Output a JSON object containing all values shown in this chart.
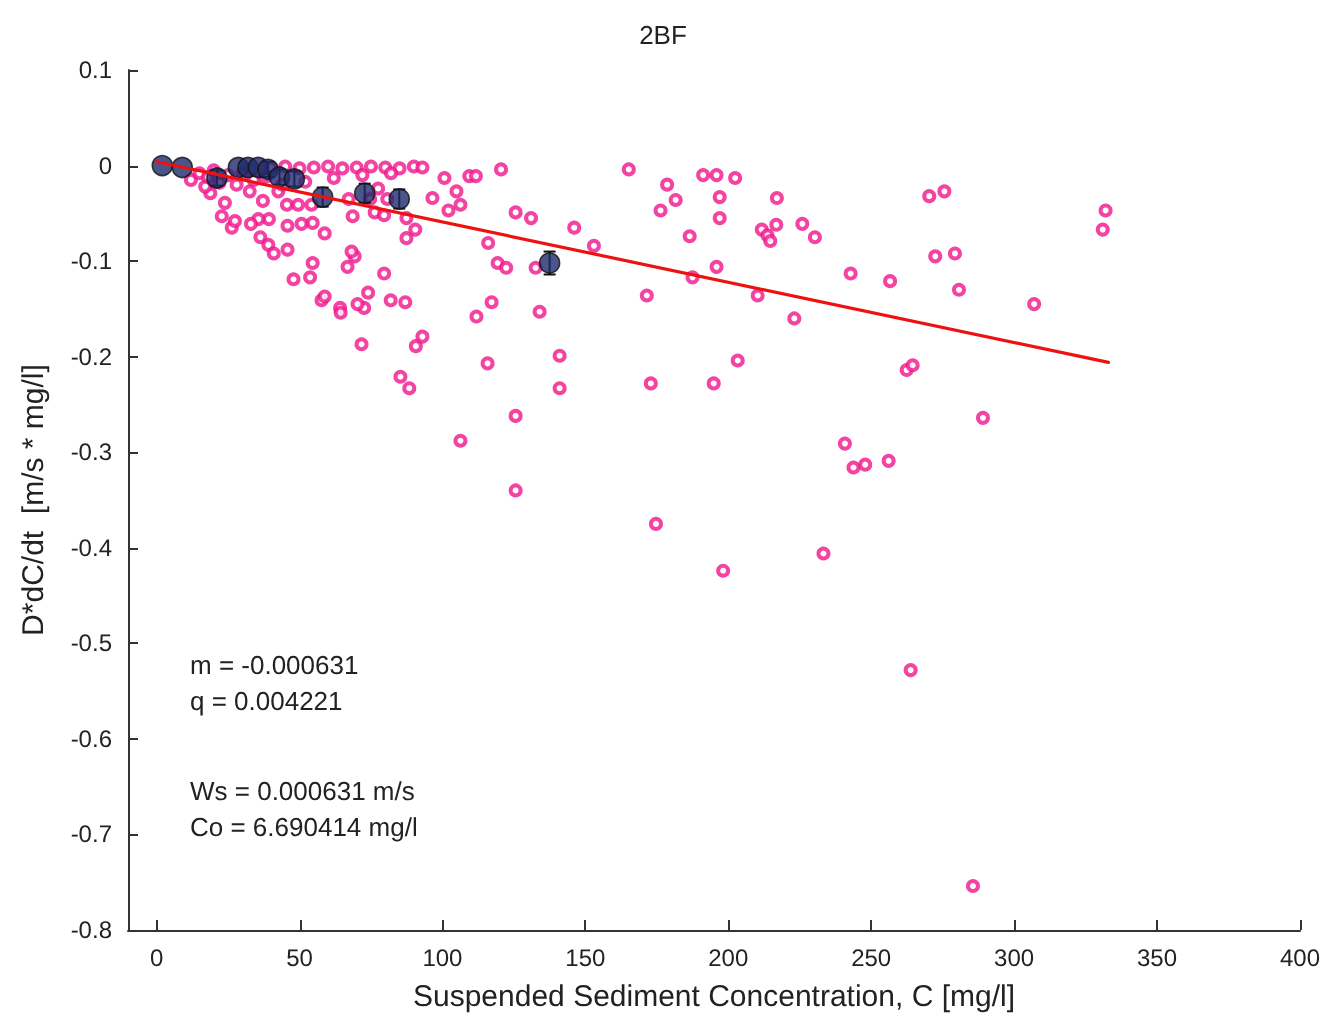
{
  "chart_data": {
    "type": "scatter",
    "title": "2BF",
    "xlabel": "Suspended Sediment Concentration, C [mg/l]",
    "ylabel": "D*dC/dt  [m/s * mg/l]",
    "xlim": [
      -10,
      400
    ],
    "xticks": [
      0,
      50,
      100,
      150,
      200,
      250,
      300,
      350,
      400
    ],
    "ylim": [
      -0.8,
      0.1
    ],
    "yticks": [
      -0.8,
      -0.7,
      -0.6,
      -0.5,
      -0.4,
      -0.3,
      -0.2,
      -0.1,
      0,
      0.1
    ],
    "grid": false,
    "marker": "circle",
    "annotations": [
      "m = -0.000631",
      "q = 0.004221",
      "Ws = 0.000631 m/s",
      "Co = 6.690414 mg/l"
    ],
    "series": [
      {
        "color": "#f0148c",
        "x": [
          120.5,
          165.2,
          178.6,
          191.2,
          195.9,
          202.4,
          125.6,
          131.0,
          181.6,
          176.3,
          197.0,
          197.0,
          217.0,
          146.1,
          186.5,
          211.7,
          213.7,
          214.7,
          216.8,
          225.9,
          230.3,
          153.0,
          119.3,
          122.3,
          132.6,
          195.9,
          242.8,
          256.6,
          187.5,
          171.5,
          210.3,
          223.1,
          134.0,
          141.0,
          203.3,
          141.0,
          172.9,
          194.9,
          125.6,
          240.8,
          243.8,
          247.9,
          256.1,
          125.6,
          270.3,
          275.6,
          332.0,
          331.0,
          272.4,
          279.3,
          280.7,
          307.0,
          262.4,
          264.5,
          289.1,
          174.7,
          198.2,
          233.3,
          263.8,
          285.6,
          100.7,
          109.4,
          111.7,
          104.9,
          96.5,
          106.3,
          102.1,
          87.4,
          90.5,
          87.4,
          116.0,
          111.9,
          117.2,
          115.8,
          106.3,
          85.3,
          88.4,
          90.7,
          93.0,
          87.0,
          81.9,
          79.6,
          71.7,
          74.0,
          72.6,
          70.3,
          66.8,
          69.3,
          68.2,
          64.2,
          64.4,
          57.7,
          58.8,
          54.6,
          53.7,
          47.9,
          45.8,
          58.8,
          54.6,
          50.7,
          45.8,
          36.3,
          39.1,
          41.0,
          45.6,
          37.2,
          39.3,
          35.6,
          33.0,
          26.3,
          27.4,
          22.8,
          77.5,
          68.6,
          76.3,
          79.6,
          80.7,
          74.7,
          67.2,
          54.2,
          49.5,
          42.6,
          32.6,
          23.9,
          18.8,
          17.0,
          40,
          45,
          50,
          55,
          60,
          65,
          70,
          75,
          80,
          85,
          90,
          93,
          12,
          15,
          18,
          20,
          22,
          25,
          28,
          30,
          34,
          38,
          44,
          52,
          62,
          72,
          82
        ],
        "values": [
          -0.004,
          -0.004,
          -0.02,
          -0.01,
          -0.01,
          -0.013,
          -0.049,
          -0.055,
          -0.036,
          -0.047,
          -0.033,
          -0.055,
          -0.034,
          -0.065,
          -0.074,
          -0.067,
          -0.073,
          -0.079,
          -0.062,
          -0.061,
          -0.075,
          -0.084,
          -0.102,
          -0.107,
          -0.107,
          -0.106,
          -0.113,
          -0.121,
          -0.117,
          -0.136,
          -0.136,
          -0.16,
          -0.153,
          -0.199,
          -0.204,
          -0.233,
          -0.228,
          -0.228,
          -0.262,
          -0.291,
          -0.316,
          -0.313,
          -0.309,
          -0.34,
          -0.032,
          -0.027,
          -0.047,
          -0.067,
          -0.095,
          -0.092,
          -0.13,
          -0.145,
          -0.214,
          -0.209,
          -0.264,
          -0.375,
          -0.424,
          -0.406,
          -0.528,
          -0.754,
          -0.013,
          -0.011,
          -0.011,
          -0.027,
          -0.034,
          -0.041,
          -0.047,
          -0.055,
          -0.067,
          -0.076,
          -0.081,
          -0.158,
          -0.143,
          -0.207,
          -0.288,
          -0.221,
          -0.233,
          -0.189,
          -0.179,
          -0.143,
          -0.141,
          -0.113,
          -0.187,
          -0.133,
          -0.149,
          -0.145,
          -0.106,
          -0.095,
          -0.09,
          -0.149,
          -0.154,
          -0.141,
          -0.137,
          -0.102,
          -0.117,
          -0.119,
          -0.088,
          -0.071,
          -0.06,
          -0.061,
          -0.063,
          -0.075,
          -0.083,
          -0.092,
          -0.041,
          -0.037,
          -0.056,
          -0.056,
          -0.061,
          -0.065,
          -0.058,
          -0.053,
          -0.024,
          -0.053,
          -0.049,
          -0.052,
          -0.035,
          -0.035,
          -0.035,
          -0.041,
          -0.041,
          -0.027,
          -0.027,
          -0.039,
          -0.029,
          -0.022,
          -0.002,
          -0.001,
          -0.003,
          -0.002,
          -0.001,
          -0.003,
          -0.002,
          -0.001,
          -0.002,
          -0.003,
          -0.001,
          -0.002,
          -0.015,
          -0.008,
          -0.012,
          -0.005,
          -0.018,
          -0.01,
          -0.02,
          -0.008,
          -0.015,
          -0.012,
          -0.02,
          -0.017,
          -0.013,
          -0.01,
          -0.008
        ]
      },
      {
        "type": "scatter",
        "color": "#1f2a6b",
        "x": [
          2,
          9,
          21.1,
          28.6,
          32,
          35.6,
          39,
          43,
          48.2,
          58.1,
          72.8,
          84.9,
          137.5
        ],
        "values": [
          0.0,
          -0.002,
          -0.013,
          -0.002,
          -0.002,
          -0.002,
          -0.004,
          -0.012,
          -0.014,
          -0.033,
          -0.029,
          -0.035,
          -0.102
        ],
        "errors": [
          null,
          null,
          0.008,
          null,
          null,
          null,
          0.008,
          0.008,
          0.008,
          0.01,
          0.01,
          0.01,
          0.012
        ]
      },
      {
        "type": "line",
        "color": "#ee1111",
        "marker": "none",
        "line_style": "solid",
        "x": [
          0,
          333
        ],
        "values": [
          0.004,
          -0.206
        ]
      }
    ]
  }
}
